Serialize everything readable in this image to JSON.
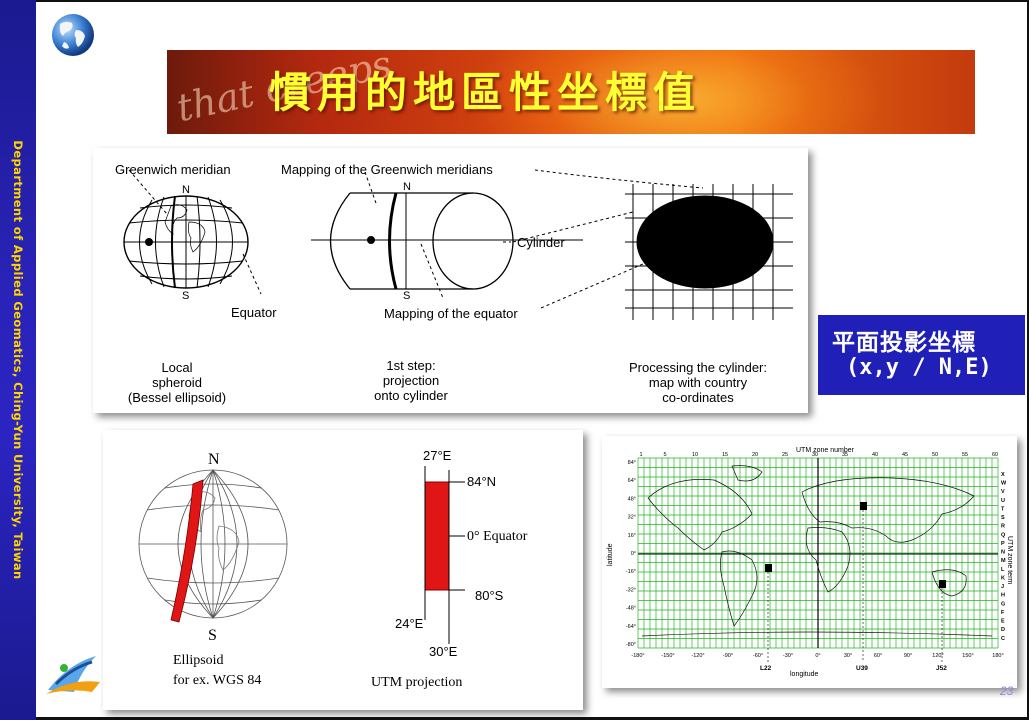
{
  "sidebar": {
    "text": "Department of Applied Geomatics, Ching-Yun University, Taiwan"
  },
  "title": {
    "text": "慣用的地區性坐標值",
    "background_text": "that creeps"
  },
  "callout": {
    "line1": "平面投影坐標",
    "line2": "(x,y / N,E)"
  },
  "top_figure": {
    "greenwich_label": "Greenwich meridian",
    "mapping_greenwich_label": "Mapping of the  Greenwich meridians",
    "n_label": "N",
    "s_label": "S",
    "equator_label": "Equator",
    "cylinder_label": "Cylinder",
    "mapping_equator_label": "Mapping of the equator",
    "caption_local": [
      "Local",
      "spheroid",
      "(Bessel ellipsoid)"
    ],
    "caption_step": [
      "1st step:",
      "projection",
      "onto cylinder"
    ],
    "caption_processing": [
      "Processing the cylinder:",
      "map with country",
      "co-ordinates"
    ]
  },
  "bottom_left_figure": {
    "n_label": "N",
    "s_label": "S",
    "lon_top": "27°E",
    "lat_top": "84°N",
    "equator_label": "0°  Equator",
    "lat_bottom": "80°S",
    "lon_left": "24°E",
    "lon_bottom": "30°E",
    "caption_ellipsoid": [
      "Ellipsoid",
      "for ex. WGS 84"
    ],
    "caption_utm": "UTM projection"
  },
  "utm_map": {
    "title": "UTM zone number",
    "zone_numbers": [
      "1",
      "5",
      "10",
      "15",
      "20",
      "25",
      "30",
      "35",
      "40",
      "45",
      "50",
      "55",
      "60"
    ],
    "lat_labels": [
      "84°",
      "64°",
      "48°",
      "32°",
      "16°",
      "0°",
      "-16°",
      "-32°",
      "-48°",
      "-64°",
      "-80°"
    ],
    "lon_labels": [
      "-180°",
      "-150°",
      "-120°",
      "-90°",
      "-60°",
      "-30°",
      "0°",
      "30°",
      "60°",
      "90°",
      "120°",
      "150°",
      "180°"
    ],
    "zone_letters": [
      "X",
      "W",
      "V",
      "U",
      "T",
      "S",
      "R",
      "Q",
      "P",
      "N",
      "M",
      "L",
      "K",
      "J",
      "H",
      "G",
      "F",
      "E",
      "D",
      "C"
    ],
    "ylabel": "latitude",
    "xlabel": "longitude",
    "right_label": "UTM zone term",
    "markers": [
      "L22",
      "U39",
      "J52"
    ],
    "colors": {
      "grid": "#23b523"
    }
  },
  "page": {
    "number": "23"
  }
}
